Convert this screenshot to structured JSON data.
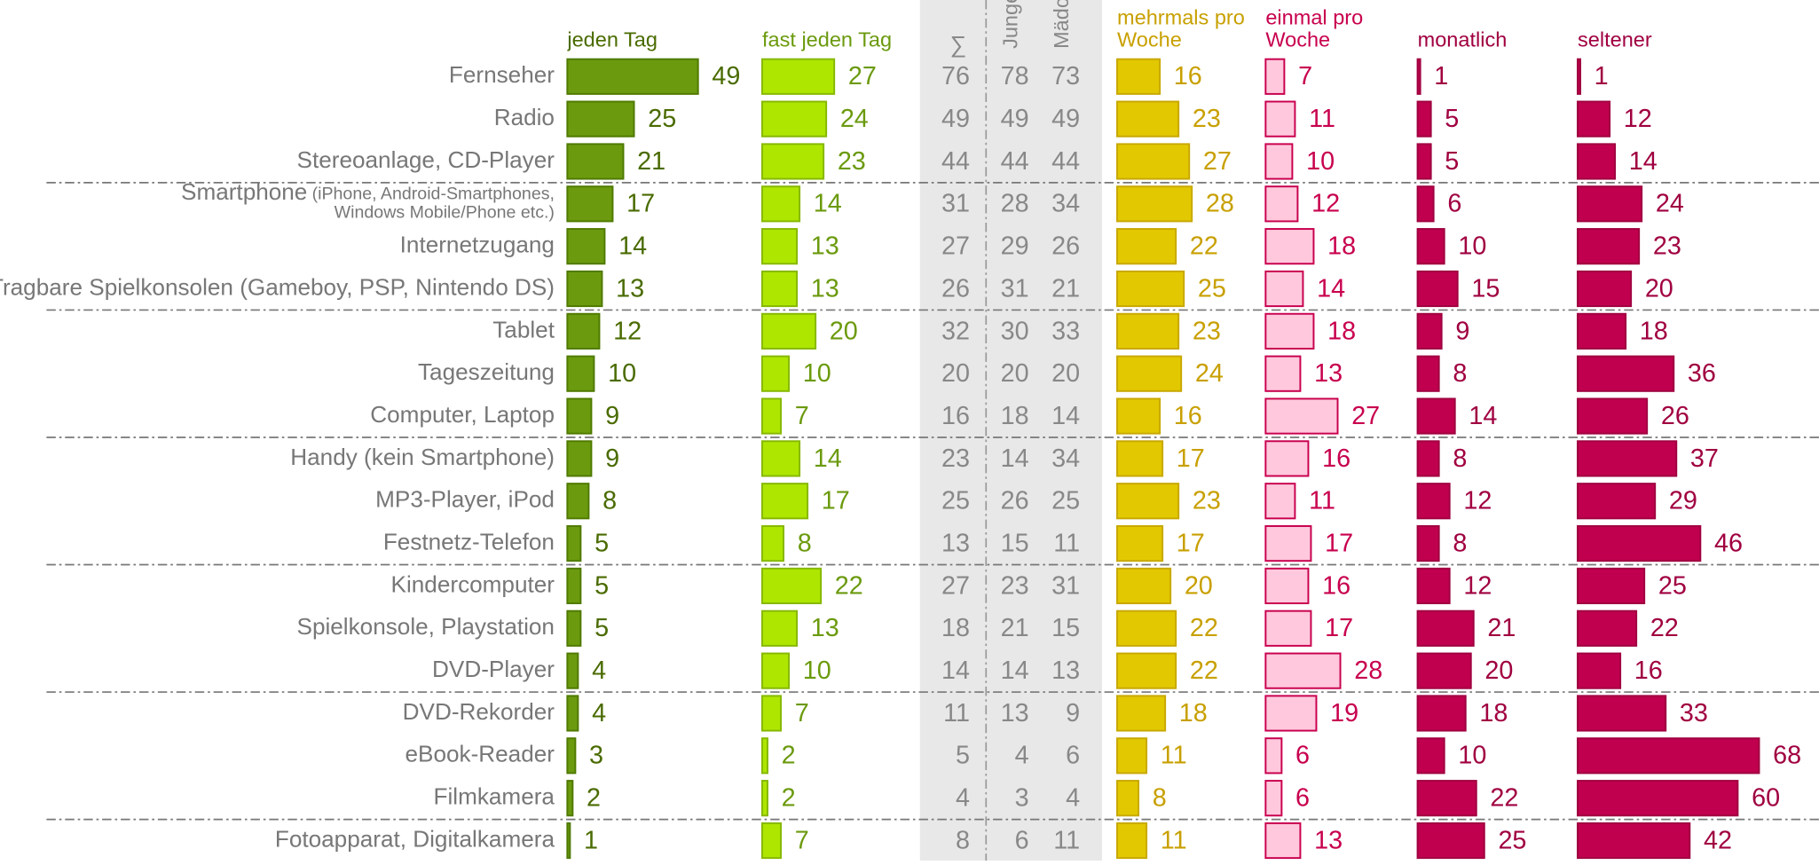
{
  "chart_data": {
    "type": "bar",
    "categories": [
      "Fernseher",
      "Radio",
      "Stereoanlage, CD-Player",
      "Smartphone",
      "Internetzugang",
      "Tragbare Spielkonsolen (Gameboy, PSP, Nintendo DS)",
      "Tablet",
      "Tageszeitung",
      "Computer, Laptop",
      "Handy (kein Smartphone)",
      "MP3-Player, iPod",
      "Festnetz-Telefon",
      "Kindercomputer",
      "Spielkonsole, Playstation",
      "DVD-Player",
      "DVD-Rekorder",
      "eBook-Reader",
      "Filmkamera",
      "Fotoapparat, Digitalkamera"
    ],
    "smartphone_note": [
      "(iPhone, Android-Smartphones,",
      "Windows Mobile/Phone etc.)"
    ],
    "series": [
      {
        "name": "jeden Tag",
        "color": "#6b9a0e",
        "stroke": "#4f7a00",
        "text_color": "#4a6b00",
        "values": [
          49,
          25,
          21,
          17,
          14,
          13,
          12,
          10,
          9,
          9,
          8,
          5,
          5,
          5,
          4,
          4,
          3,
          2,
          1
        ]
      },
      {
        "name": "fast jeden Tag",
        "color": "#aee600",
        "stroke": "#86b800",
        "text_color": "#6b9a0e",
        "values": [
          27,
          24,
          23,
          14,
          13,
          13,
          20,
          10,
          7,
          14,
          17,
          8,
          22,
          13,
          10,
          7,
          2,
          2,
          7
        ]
      },
      {
        "name": "mehrmals pro Woche",
        "color": "#e2c800",
        "stroke": "#c8a800",
        "text_color": "#c8a000",
        "values": [
          16,
          23,
          27,
          28,
          22,
          25,
          23,
          24,
          16,
          17,
          23,
          17,
          20,
          22,
          22,
          18,
          11,
          8,
          11
        ]
      },
      {
        "name": "einmal pro Woche",
        "color": "#ffc8dc",
        "stroke": "#c8004e",
        "text_color": "#c8004e",
        "values": [
          7,
          11,
          10,
          12,
          18,
          14,
          18,
          13,
          27,
          16,
          11,
          17,
          16,
          17,
          28,
          19,
          6,
          6,
          13
        ]
      },
      {
        "name": "monatlich",
        "color": "#c0004e",
        "stroke": "#a00040",
        "text_color": "#a00040",
        "values": [
          1,
          5,
          5,
          6,
          10,
          15,
          9,
          8,
          14,
          8,
          12,
          8,
          12,
          21,
          20,
          18,
          10,
          22,
          25
        ]
      },
      {
        "name": "seltener",
        "color": "#c0004e",
        "stroke": "#a00040",
        "text_color": "#a00040",
        "values": [
          1,
          12,
          14,
          24,
          23,
          20,
          18,
          36,
          26,
          37,
          29,
          46,
          25,
          22,
          16,
          33,
          68,
          60,
          42
        ]
      }
    ],
    "totals": [
      {
        "name": "∑",
        "values": [
          76,
          49,
          44,
          31,
          27,
          26,
          32,
          20,
          16,
          23,
          25,
          13,
          27,
          18,
          14,
          11,
          5,
          4,
          8
        ]
      },
      {
        "name": "Jungen",
        "values": [
          78,
          49,
          44,
          28,
          29,
          31,
          30,
          20,
          18,
          14,
          26,
          15,
          23,
          21,
          14,
          13,
          4,
          3,
          6
        ]
      },
      {
        "name": "Mädchen",
        "values": [
          73,
          49,
          44,
          34,
          26,
          21,
          33,
          20,
          14,
          34,
          25,
          11,
          31,
          15,
          13,
          9,
          6,
          4,
          11
        ]
      }
    ]
  }
}
